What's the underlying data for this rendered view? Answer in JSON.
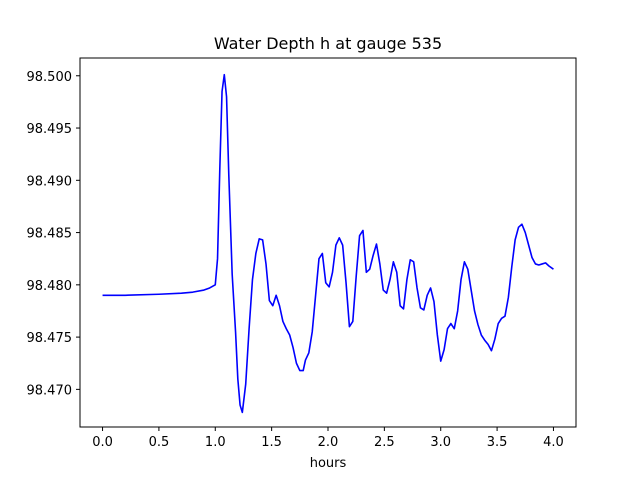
{
  "chart_data": {
    "type": "line",
    "title": "Water Depth h at gauge 535",
    "xlabel": "hours",
    "ylabel": "",
    "xlim": [
      -0.2,
      4.2
    ],
    "ylim": [
      98.4664,
      98.5017
    ],
    "xticks": [
      0.0,
      0.5,
      1.0,
      1.5,
      2.0,
      2.5,
      3.0,
      3.5,
      4.0
    ],
    "xtick_labels": [
      "0.0",
      "0.5",
      "1.0",
      "1.5",
      "2.0",
      "2.5",
      "3.0",
      "3.5",
      "4.0"
    ],
    "yticks": [
      98.47,
      98.475,
      98.48,
      98.485,
      98.49,
      98.495,
      98.5
    ],
    "ytick_labels": [
      "98.470",
      "98.475",
      "98.480",
      "98.485",
      "98.490",
      "98.495",
      "98.500"
    ],
    "grid": false,
    "series": [
      {
        "color": "#0000ff",
        "x": [
          0.0,
          0.2,
          0.5,
          0.7,
          0.8,
          0.9,
          0.95,
          1.0,
          1.02,
          1.04,
          1.06,
          1.08,
          1.1,
          1.12,
          1.15,
          1.18,
          1.2,
          1.22,
          1.24,
          1.27,
          1.3,
          1.33,
          1.36,
          1.39,
          1.42,
          1.45,
          1.48,
          1.51,
          1.54,
          1.57,
          1.6,
          1.63,
          1.66,
          1.69,
          1.72,
          1.75,
          1.78,
          1.8,
          1.83,
          1.86,
          1.89,
          1.92,
          1.95,
          1.98,
          2.01,
          2.04,
          2.07,
          2.1,
          2.13,
          2.16,
          2.19,
          2.22,
          2.25,
          2.28,
          2.31,
          2.34,
          2.37,
          2.4,
          2.43,
          2.46,
          2.49,
          2.52,
          2.55,
          2.58,
          2.61,
          2.64,
          2.67,
          2.7,
          2.73,
          2.76,
          2.79,
          2.82,
          2.85,
          2.88,
          2.91,
          2.94,
          2.97,
          3.0,
          3.03,
          3.06,
          3.09,
          3.12,
          3.15,
          3.18,
          3.21,
          3.24,
          3.27,
          3.3,
          3.33,
          3.36,
          3.39,
          3.42,
          3.45,
          3.48,
          3.51,
          3.54,
          3.57,
          3.6,
          3.63,
          3.66,
          3.69,
          3.72,
          3.75,
          3.78,
          3.81,
          3.84,
          3.87,
          3.9,
          3.93,
          3.96,
          4.0
        ],
        "y": [
          98.479,
          98.479,
          98.4791,
          98.4792,
          98.4793,
          98.4795,
          98.4797,
          98.48,
          98.4825,
          98.491,
          98.4985,
          98.5001,
          98.498,
          98.4905,
          98.481,
          98.4755,
          98.471,
          98.4685,
          98.4678,
          98.4705,
          98.4758,
          98.4805,
          98.483,
          98.4844,
          98.4843,
          98.482,
          98.4785,
          98.478,
          98.479,
          98.478,
          98.4765,
          98.4758,
          98.4752,
          98.474,
          98.4725,
          98.4718,
          98.4718,
          98.4728,
          98.4735,
          98.4755,
          98.479,
          98.4825,
          98.483,
          98.4802,
          98.4798,
          98.4812,
          98.4838,
          98.4845,
          98.4838,
          98.4802,
          98.476,
          98.4765,
          98.4808,
          98.4847,
          98.4852,
          98.4812,
          98.4815,
          98.4828,
          98.4839,
          98.482,
          98.4795,
          98.4792,
          98.4805,
          98.4822,
          98.4812,
          98.478,
          98.4777,
          98.4805,
          98.4824,
          98.4822,
          98.4797,
          98.4778,
          98.4776,
          98.479,
          98.4797,
          98.4784,
          98.4752,
          98.4727,
          98.4738,
          98.4758,
          98.4763,
          98.4758,
          98.4775,
          98.4805,
          98.4822,
          98.4815,
          98.4795,
          98.4775,
          98.4762,
          98.4752,
          98.4747,
          98.4743,
          98.4737,
          98.4748,
          98.4763,
          98.4768,
          98.477,
          98.4788,
          98.4817,
          98.4843,
          98.4855,
          98.4858,
          98.485,
          98.4838,
          98.4826,
          98.482,
          98.4819,
          98.482,
          98.4821,
          98.4818,
          98.4815
        ]
      }
    ]
  }
}
